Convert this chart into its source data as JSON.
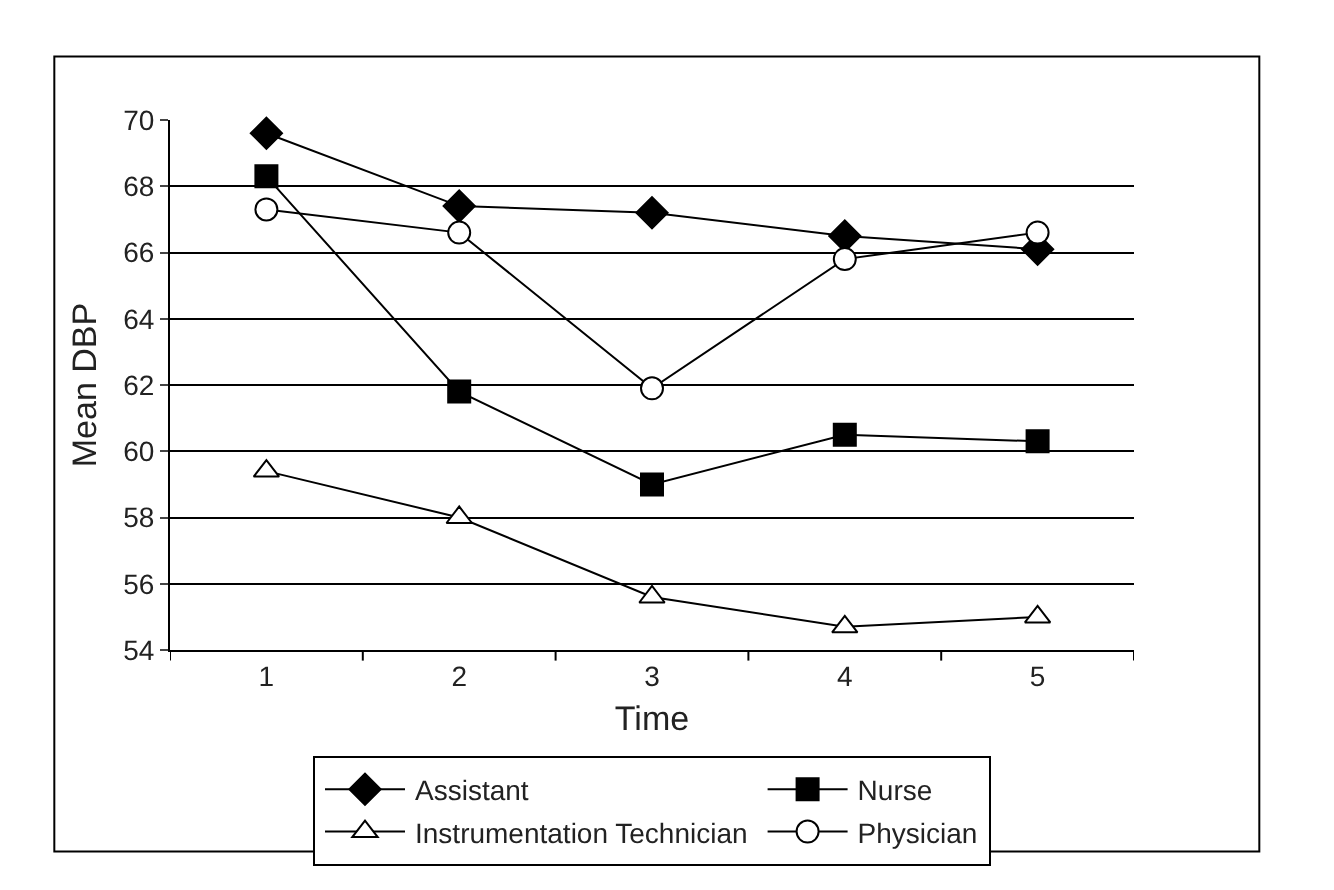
{
  "chart_data": {
    "type": "line",
    "xlabel": "Time",
    "ylabel": "Mean DBP",
    "categories": [
      "1",
      "2",
      "3",
      "4",
      "5"
    ],
    "series": [
      {
        "name": "Assistant",
        "color": "#000000",
        "marker": "diamond",
        "values": [
          69.6,
          67.4,
          67.2,
          66.5,
          66.1
        ]
      },
      {
        "name": "Nurse",
        "color": "#000000",
        "marker": "square",
        "values": [
          68.3,
          61.8,
          59.0,
          60.5,
          60.3
        ]
      },
      {
        "name": "Instrumentation Technician",
        "color": "#000000",
        "marker": "triangle",
        "values": [
          59.4,
          58.0,
          55.6,
          54.7,
          55.0
        ]
      },
      {
        "name": "Physician",
        "color": "#000000",
        "marker": "circle",
        "values": [
          67.3,
          66.6,
          61.9,
          65.8,
          66.6
        ]
      }
    ],
    "ylim": [
      54,
      70
    ],
    "yticks": [
      54,
      56,
      58,
      60,
      62,
      64,
      66,
      68,
      70
    ],
    "grid": "y",
    "legend": "bottom",
    "line_style": "solid"
  }
}
